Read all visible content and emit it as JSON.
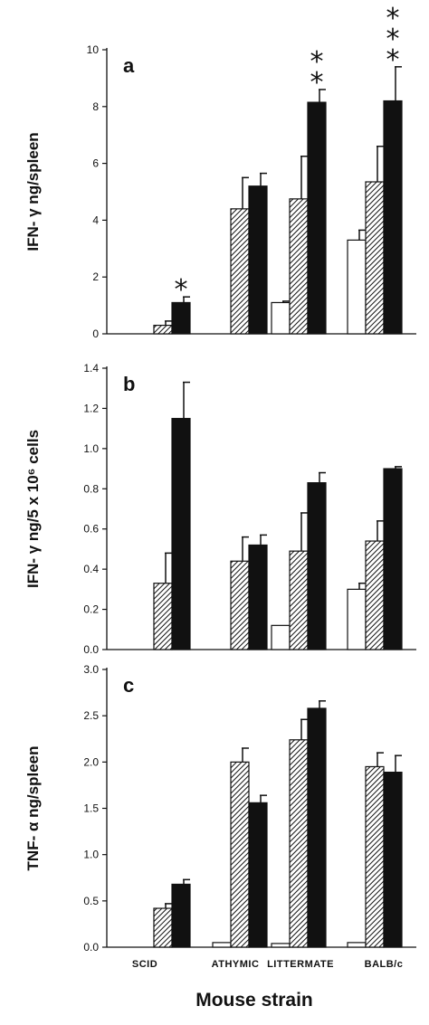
{
  "chart_data": [
    {
      "type": "bar",
      "panel": "a",
      "ylabel": "IFN- γ ng/spleen",
      "ylim": [
        0,
        10
      ],
      "yticks": [
        "0",
        "2",
        "4",
        "6",
        "8",
        "10"
      ],
      "categories": [
        "SCID",
        "ATHYMIC",
        "LITTERMATE",
        "BALB/c"
      ],
      "series": [
        {
          "values": [
            0,
            0,
            1.1,
            3.3
          ],
          "errors": [
            0,
            0,
            0.05,
            0.35
          ],
          "style": "white"
        },
        {
          "values": [
            0.3,
            4.4,
            4.75,
            5.35
          ],
          "errors": [
            0.15,
            1.1,
            1.5,
            1.25
          ],
          "style": "hatched"
        },
        {
          "values": [
            1.1,
            5.2,
            8.15,
            8.2
          ],
          "errors": [
            0.2,
            0.45,
            0.45,
            1.2
          ],
          "style": "black"
        }
      ],
      "annotations": [
        {
          "category": "SCID",
          "text": "*"
        },
        {
          "category": "LITTERMATE",
          "text": "**"
        },
        {
          "category": "BALB/c",
          "text": "***"
        }
      ]
    },
    {
      "type": "bar",
      "panel": "b",
      "ylabel": "IFN- γ ng/5 x 10⁶ cells",
      "ylim": [
        0,
        1.4
      ],
      "yticks": [
        "0.0",
        "0.2",
        "0.4",
        "0.6",
        "0.8",
        "1.0",
        "1.2",
        "1.4"
      ],
      "categories": [
        "SCID",
        "ATHYMIC",
        "LITTERMATE",
        "BALB/c"
      ],
      "series": [
        {
          "values": [
            0,
            0,
            0.12,
            0.3
          ],
          "errors": [
            0,
            0,
            0,
            0.03
          ],
          "style": "white"
        },
        {
          "values": [
            0.33,
            0.44,
            0.49,
            0.54
          ],
          "errors": [
            0.15,
            0.12,
            0.19,
            0.1
          ],
          "style": "hatched"
        },
        {
          "values": [
            1.15,
            0.52,
            0.83,
            0.9
          ],
          "errors": [
            0.18,
            0.05,
            0.05,
            0.01
          ],
          "style": "black"
        }
      ],
      "annotations": []
    },
    {
      "type": "bar",
      "panel": "c",
      "ylabel": "TNF- α ng/spleen",
      "ylim": [
        0,
        3.0
      ],
      "yticks": [
        "0.0",
        "0.5",
        "1.0",
        "1.5",
        "2.0",
        "2.5",
        "3.0"
      ],
      "categories": [
        "SCID",
        "ATHYMIC",
        "LITTERMATE",
        "BALB/c"
      ],
      "series": [
        {
          "values": [
            0,
            0.05,
            0.04,
            0.05
          ],
          "errors": [
            0,
            0,
            0,
            0
          ],
          "style": "white"
        },
        {
          "values": [
            0.42,
            2.0,
            2.24,
            1.95
          ],
          "errors": [
            0.05,
            0.15,
            0.22,
            0.15
          ],
          "style": "hatched"
        },
        {
          "values": [
            0.68,
            1.56,
            2.58,
            1.89
          ],
          "errors": [
            0.05,
            0.08,
            0.08,
            0.18
          ],
          "style": "black"
        }
      ],
      "annotations": []
    }
  ],
  "x_category_labels": [
    "SCID",
    "ATHYMIC",
    "LITTERMATE",
    "BALB/c"
  ],
  "xlabel": "Mouse strain"
}
